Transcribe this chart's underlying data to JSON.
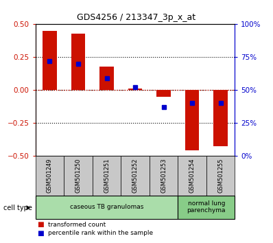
{
  "title": "GDS4256 / 213347_3p_x_at",
  "samples": [
    "GSM501249",
    "GSM501250",
    "GSM501251",
    "GSM501252",
    "GSM501253",
    "GSM501254",
    "GSM501255"
  ],
  "transformed_count": [
    0.45,
    0.43,
    0.18,
    0.01,
    -0.05,
    -0.46,
    -0.43
  ],
  "percentile_rank_left": [
    0.22,
    0.2,
    0.09,
    0.02,
    -0.13,
    -0.1,
    -0.1
  ],
  "ylim": [
    -0.5,
    0.5
  ],
  "right_ylim": [
    0,
    100
  ],
  "right_yticks": [
    0,
    25,
    50,
    75,
    100
  ],
  "right_yticklabels": [
    "0%",
    "25%",
    "50%",
    "75%",
    "100%"
  ],
  "left_yticks": [
    -0.5,
    -0.25,
    0,
    0.25,
    0.5
  ],
  "bar_color": "#cc1100",
  "blue_color": "#0000cc",
  "cell_groups": [
    {
      "label": "caseous TB granulomas",
      "indices": [
        0,
        1,
        2,
        3,
        4
      ],
      "color": "#aaddaa"
    },
    {
      "label": "normal lung\nparenchyma",
      "indices": [
        5,
        6
      ],
      "color": "#88cc88"
    }
  ],
  "cell_type_label": "cell type",
  "legend_red_label": "transformed count",
  "legend_blue_label": "percentile rank within the sample",
  "tick_label_color_left": "#cc1100",
  "tick_label_color_right": "#0000cc",
  "bar_width": 0.5,
  "sample_bg_color": "#c8c8c8"
}
